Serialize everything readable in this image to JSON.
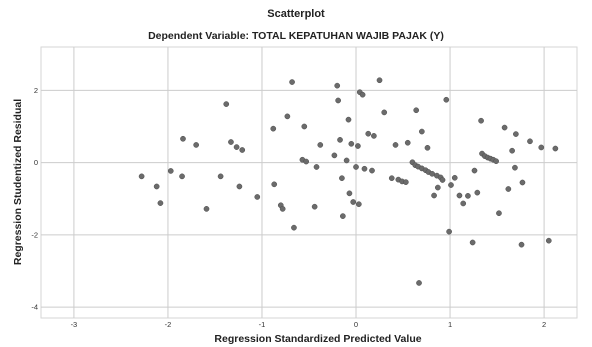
{
  "chart_data": {
    "type": "scatter",
    "title": "Scatterplot",
    "subtitle": "Dependent Variable: TOTAL KEPATUHAN WAJIB PAJAK (Y)",
    "xlabel": "Regression Standardized Predicted Value",
    "ylabel": "Regression Studentized Residual",
    "xlim": [
      -3.35,
      2.35
    ],
    "ylim": [
      -4.3,
      3.2
    ],
    "xticks": [
      -3,
      -2,
      -1,
      0,
      1,
      2
    ],
    "yticks": [
      -4,
      -2,
      0,
      2
    ],
    "grid": true,
    "point_color": "#6b6b6b",
    "gridline_color": "#cccccc",
    "points": [
      {
        "x": -2.28,
        "y": -0.38
      },
      {
        "x": -2.12,
        "y": -0.66
      },
      {
        "x": -2.08,
        "y": -1.12
      },
      {
        "x": -1.97,
        "y": -0.23
      },
      {
        "x": -1.85,
        "y": -0.38
      },
      {
        "x": -1.84,
        "y": 0.66
      },
      {
        "x": -1.7,
        "y": 0.49
      },
      {
        "x": -1.59,
        "y": -1.28
      },
      {
        "x": -1.44,
        "y": -0.38
      },
      {
        "x": -1.38,
        "y": 1.62
      },
      {
        "x": -1.33,
        "y": 0.57
      },
      {
        "x": -1.27,
        "y": 0.43
      },
      {
        "x": -1.24,
        "y": -0.66
      },
      {
        "x": -1.21,
        "y": 0.35
      },
      {
        "x": -1.05,
        "y": -0.95
      },
      {
        "x": -0.88,
        "y": 0.94
      },
      {
        "x": -0.87,
        "y": -0.6
      },
      {
        "x": -0.8,
        "y": -1.18
      },
      {
        "x": -0.78,
        "y": -1.28
      },
      {
        "x": -0.73,
        "y": 1.28
      },
      {
        "x": -0.68,
        "y": 2.23
      },
      {
        "x": -0.66,
        "y": -1.8
      },
      {
        "x": -0.57,
        "y": 0.08
      },
      {
        "x": -0.55,
        "y": 1.0
      },
      {
        "x": -0.53,
        "y": 0.03
      },
      {
        "x": -0.44,
        "y": -1.22
      },
      {
        "x": -0.42,
        "y": -0.12
      },
      {
        "x": -0.38,
        "y": 0.49
      },
      {
        "x": -0.23,
        "y": 0.2
      },
      {
        "x": -0.2,
        "y": 2.13
      },
      {
        "x": -0.19,
        "y": 1.72
      },
      {
        "x": -0.17,
        "y": 0.63
      },
      {
        "x": -0.15,
        "y": -0.43
      },
      {
        "x": -0.14,
        "y": -1.48
      },
      {
        "x": -0.1,
        "y": 0.06
      },
      {
        "x": -0.08,
        "y": 1.19
      },
      {
        "x": -0.07,
        "y": -0.85
      },
      {
        "x": -0.05,
        "y": 0.52
      },
      {
        "x": -0.03,
        "y": -1.09
      },
      {
        "x": 0.0,
        "y": -0.12
      },
      {
        "x": 0.02,
        "y": 0.46
      },
      {
        "x": 0.03,
        "y": -1.15
      },
      {
        "x": 0.04,
        "y": 1.95
      },
      {
        "x": 0.07,
        "y": 1.88
      },
      {
        "x": 0.09,
        "y": -0.17
      },
      {
        "x": 0.13,
        "y": 0.8
      },
      {
        "x": 0.17,
        "y": -0.22
      },
      {
        "x": 0.19,
        "y": 0.74
      },
      {
        "x": 0.25,
        "y": 2.28
      },
      {
        "x": 0.3,
        "y": 1.39
      },
      {
        "x": 0.38,
        "y": -0.43
      },
      {
        "x": 0.42,
        "y": 0.49
      },
      {
        "x": 0.45,
        "y": -0.47
      },
      {
        "x": 0.49,
        "y": -0.52
      },
      {
        "x": 0.53,
        "y": -0.54
      },
      {
        "x": 0.55,
        "y": 0.55
      },
      {
        "x": 0.6,
        "y": 0.01
      },
      {
        "x": 0.63,
        "y": -0.07
      },
      {
        "x": 0.64,
        "y": 1.45
      },
      {
        "x": 0.66,
        "y": -0.11
      },
      {
        "x": 0.67,
        "y": -3.33
      },
      {
        "x": 0.7,
        "y": 0.86
      },
      {
        "x": 0.7,
        "y": -0.16
      },
      {
        "x": 0.74,
        "y": -0.21
      },
      {
        "x": 0.76,
        "y": 0.41
      },
      {
        "x": 0.77,
        "y": -0.26
      },
      {
        "x": 0.81,
        "y": -0.31
      },
      {
        "x": 0.83,
        "y": -0.91
      },
      {
        "x": 0.86,
        "y": -0.36
      },
      {
        "x": 0.87,
        "y": -0.69
      },
      {
        "x": 0.9,
        "y": -0.41
      },
      {
        "x": 0.92,
        "y": -0.48
      },
      {
        "x": 0.96,
        "y": 1.74
      },
      {
        "x": 0.99,
        "y": -1.91
      },
      {
        "x": 1.01,
        "y": -0.62
      },
      {
        "x": 1.05,
        "y": -0.42
      },
      {
        "x": 1.1,
        "y": -0.91
      },
      {
        "x": 1.14,
        "y": -1.13
      },
      {
        "x": 1.19,
        "y": -0.92
      },
      {
        "x": 1.24,
        "y": -2.21
      },
      {
        "x": 1.26,
        "y": -0.22
      },
      {
        "x": 1.29,
        "y": -0.83
      },
      {
        "x": 1.33,
        "y": 1.16
      },
      {
        "x": 1.34,
        "y": 0.25
      },
      {
        "x": 1.37,
        "y": 0.18
      },
      {
        "x": 1.4,
        "y": 0.14
      },
      {
        "x": 1.43,
        "y": 0.11
      },
      {
        "x": 1.46,
        "y": 0.08
      },
      {
        "x": 1.49,
        "y": 0.04
      },
      {
        "x": 1.52,
        "y": -1.4
      },
      {
        "x": 1.58,
        "y": 0.97
      },
      {
        "x": 1.62,
        "y": -0.73
      },
      {
        "x": 1.66,
        "y": 0.33
      },
      {
        "x": 1.69,
        "y": -0.14
      },
      {
        "x": 1.7,
        "y": 0.79
      },
      {
        "x": 1.76,
        "y": -2.27
      },
      {
        "x": 1.77,
        "y": -0.55
      },
      {
        "x": 1.85,
        "y": 0.59
      },
      {
        "x": 1.97,
        "y": 0.42
      },
      {
        "x": 2.05,
        "y": -2.16
      },
      {
        "x": 2.12,
        "y": 0.39
      }
    ]
  }
}
